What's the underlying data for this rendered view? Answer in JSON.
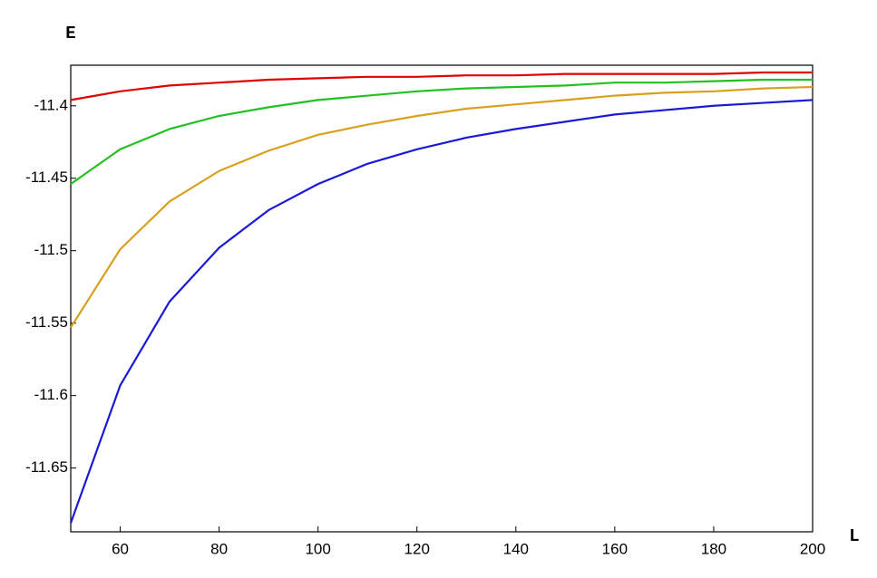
{
  "chart_data": {
    "type": "line",
    "x_label": "L",
    "y_label": "E",
    "x": [
      50,
      60,
      70,
      80,
      90,
      100,
      110,
      120,
      130,
      140,
      150,
      160,
      170,
      180,
      190,
      200
    ],
    "series": [
      {
        "color": "#e00000",
        "values": [
          -11.396,
          -11.39,
          -11.386,
          -11.384,
          -11.382,
          -11.381,
          -11.38,
          -11.38,
          -11.379,
          -11.379,
          -11.378,
          -11.378,
          -11.378,
          -11.378,
          -11.377,
          -11.377
        ]
      },
      {
        "color": "#22c022",
        "values": [
          -11.454,
          -11.43,
          -11.416,
          -11.407,
          -11.401,
          -11.396,
          -11.393,
          -11.39,
          -11.388,
          -11.387,
          -11.386,
          -11.384,
          -11.384,
          -11.383,
          -11.382,
          -11.382
        ]
      },
      {
        "color": "#d9a020",
        "values": [
          -11.553,
          -11.499,
          -11.466,
          -11.445,
          -11.431,
          -11.42,
          -11.413,
          -11.407,
          -11.402,
          -11.399,
          -11.396,
          -11.393,
          -11.391,
          -11.39,
          -11.388,
          -11.387
        ]
      },
      {
        "color": "#1a1ad6",
        "values": [
          -11.688,
          -11.593,
          -11.535,
          -11.498,
          -11.472,
          -11.454,
          -11.44,
          -11.43,
          -11.422,
          -11.416,
          -11.411,
          -11.406,
          -11.403,
          -11.4,
          -11.398,
          -11.396
        ]
      }
    ],
    "xlim": [
      50,
      200
    ],
    "ylim": [
      -11.694,
      -11.372
    ],
    "xticks": [
      60,
      80,
      100,
      120,
      140,
      160,
      180,
      200
    ],
    "yticks": [
      -11.4,
      -11.45,
      -11.5,
      -11.55,
      -11.6,
      -11.65
    ]
  }
}
